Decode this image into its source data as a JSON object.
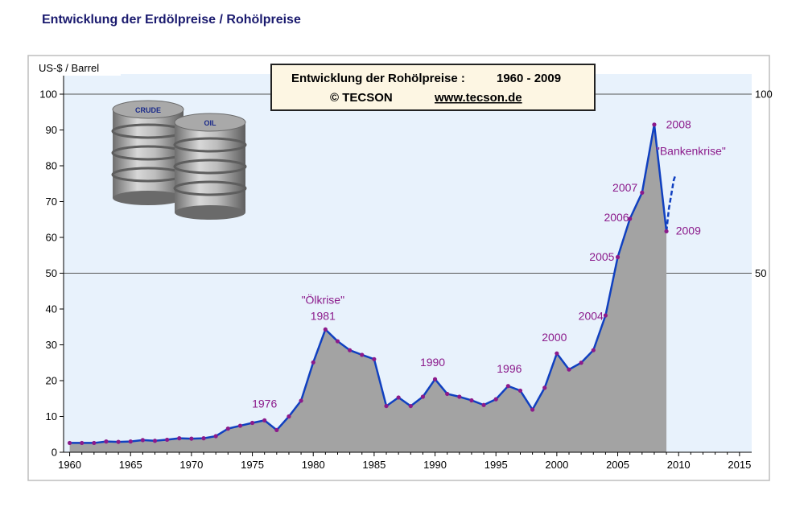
{
  "page": {
    "heading": "Entwicklung der Erdölpreise / Rohölpreise"
  },
  "chart_data": {
    "type": "area",
    "ylabel": "US-$ / Barrel",
    "title_box": {
      "line1_label": "Entwicklung der Rohölpreise :",
      "line1_years": "1960 - 2009",
      "line2_copyright": "© TECSON",
      "line2_url": "www.tecson.de"
    },
    "xlim": [
      1959.5,
      2016
    ],
    "ylim": [
      0,
      100
    ],
    "x_ticks": [
      1960,
      1965,
      1970,
      1975,
      1980,
      1985,
      1990,
      1995,
      2000,
      2005,
      2010,
      2015
    ],
    "y_ticks": [
      0,
      10,
      20,
      30,
      40,
      50,
      60,
      70,
      80,
      90,
      100
    ],
    "y_ticks_right": [
      50,
      100
    ],
    "grid": "horizontal lines at 50 and 100",
    "series": [
      {
        "color": "#1040c0",
        "fill": "#a3a3a3",
        "marker_color": "#8b1a8b",
        "x": [
          1960,
          1961,
          1962,
          1963,
          1964,
          1965,
          1966,
          1967,
          1968,
          1969,
          1970,
          1971,
          1972,
          1973,
          1974,
          1975,
          1976,
          1977,
          1978,
          1979,
          1980,
          1981,
          1982,
          1983,
          1984,
          1985,
          1986,
          1987,
          1988,
          1989,
          1990,
          1991,
          1992,
          1993,
          1994,
          1995,
          1996,
          1997,
          1998,
          1999,
          2000,
          2001,
          2002,
          2003,
          2004,
          2005,
          2006,
          2007,
          2008,
          2009
        ],
        "y": [
          2.6,
          2.6,
          2.6,
          3.0,
          2.9,
          3.0,
          3.4,
          3.2,
          3.5,
          3.9,
          3.8,
          3.9,
          4.5,
          6.6,
          7.4,
          8.2,
          8.9,
          6.2,
          10.0,
          14.4,
          25.1,
          34.3,
          31.0,
          28.5,
          27.2,
          26.0,
          12.9,
          15.3,
          12.9,
          15.5,
          20.4,
          16.3,
          15.5,
          14.5,
          13.2,
          14.8,
          18.5,
          17.2,
          11.9,
          18.0,
          27.6,
          23.1,
          25.0,
          28.5,
          38.2,
          54.5,
          65.2,
          72.5,
          91.5,
          61.7
        ],
        "tail_x": [
          2009.2,
          2009.5,
          2009.6,
          2009.7
        ],
        "tail_y": [
          68,
          74,
          76,
          77
        ]
      }
    ],
    "annotations": [
      {
        "text": "1976",
        "x": 1976,
        "y": 12.5
      },
      {
        "text": "\"Ölkrise\"",
        "x": 1980.8,
        "y": 41.5
      },
      {
        "text": "1981",
        "x": 1980.8,
        "y": 37.0
      },
      {
        "text": "1990",
        "x": 1989.8,
        "y": 24.0
      },
      {
        "text": "1996",
        "x": 1996.1,
        "y": 22.3
      },
      {
        "text": "2000",
        "x": 1999.8,
        "y": 31.0
      },
      {
        "text": "2004",
        "x": 2002.8,
        "y": 37.0
      },
      {
        "text": "2005",
        "x": 2003.7,
        "y": 53.5
      },
      {
        "text": "2006",
        "x": 2004.9,
        "y": 64.5
      },
      {
        "text": "2007",
        "x": 2005.6,
        "y": 72.8
      },
      {
        "text": "2008",
        "x": 2010.0,
        "y": 90.5
      },
      {
        "text": "\"Bankenkrise\"",
        "x": 2011.0,
        "y": 83.0
      },
      {
        "text": "2009",
        "x": 2010.8,
        "y": 60.8
      }
    ]
  }
}
